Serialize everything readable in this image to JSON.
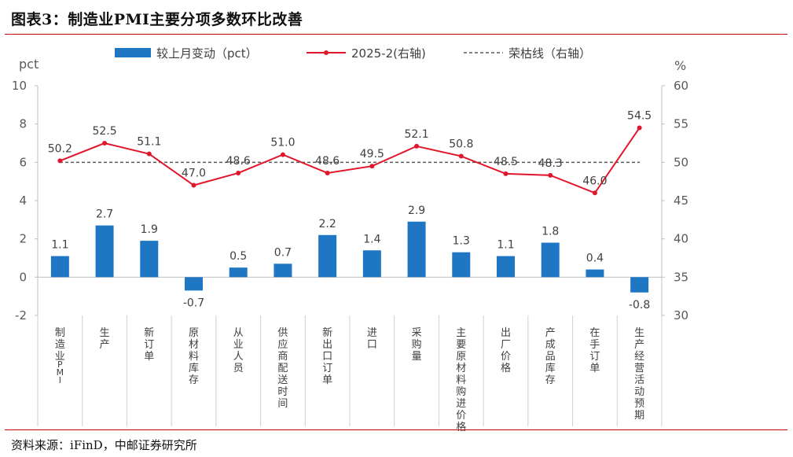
{
  "header": {
    "title": "图表3：制造业PMI主要分项多数环比改善"
  },
  "footer": {
    "source": "资料来源：iFinD，中邮证券研究所"
  },
  "colors": {
    "bar": "#1f77c4",
    "line": "#e0162b",
    "reference": "#595959",
    "rule": "#c00000"
  },
  "chart_data": {
    "type": "bar",
    "categories": [
      "制造业PMI",
      "生产",
      "新订单",
      "原材料库存",
      "从业人员",
      "供应商配送时间",
      "新出口订单",
      "进口",
      "采购量",
      "主要原材料购进价格",
      "出厂价格",
      "产成品库存",
      "在手订单",
      "生产经营活动预期"
    ],
    "series": [
      {
        "name": "较上月变动（pct）",
        "type": "bar",
        "axis": "left",
        "values": [
          1.1,
          2.7,
          1.9,
          -0.7,
          0.5,
          0.7,
          2.2,
          1.4,
          2.9,
          1.3,
          1.1,
          1.8,
          0.4,
          -0.8
        ]
      },
      {
        "name": "2025-2(右轴)",
        "type": "line",
        "axis": "right",
        "values": [
          50.2,
          52.5,
          51.1,
          47.0,
          48.6,
          51.0,
          48.6,
          49.5,
          52.1,
          50.8,
          48.5,
          48.3,
          46.0,
          54.5
        ]
      },
      {
        "name": "荣枯线（右轴）",
        "type": "reference",
        "axis": "right",
        "value": 50
      }
    ],
    "y_left": {
      "label": "pct",
      "min": -2,
      "max": 10,
      "ticks": [
        "10",
        "8",
        "6",
        "4",
        "2",
        "0",
        "-2"
      ]
    },
    "y_right": {
      "label": "%",
      "min": 30,
      "max": 60,
      "ticks": [
        "60",
        "55",
        "50",
        "45",
        "40",
        "35",
        "30"
      ]
    },
    "bar_labels": [
      "1.1",
      "2.7",
      "1.9",
      "-0.7",
      "0.5",
      "0.7",
      "2.2",
      "1.4",
      "2.9",
      "1.3",
      "1.1",
      "1.8",
      "0.4",
      "-0.8"
    ],
    "line_labels": [
      "50.2",
      "52.5",
      "51.1",
      "47.0",
      "48.6",
      "51.0",
      "48.6",
      "49.5",
      "52.1",
      "50.8",
      "48.5",
      "48.3",
      "46.0",
      "54.5"
    ],
    "legend_position": "top",
    "grid": false
  }
}
